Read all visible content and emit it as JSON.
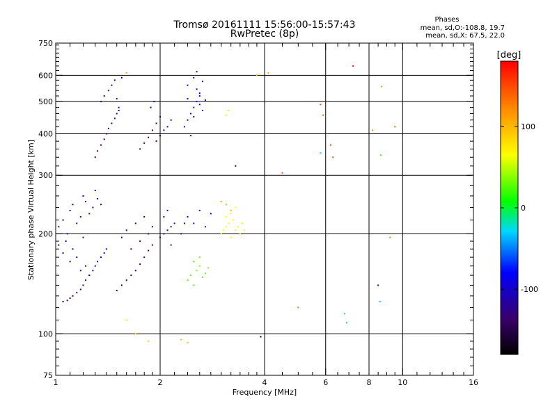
{
  "chart_data": {
    "type": "scatter",
    "title": "Tromsø 20161111 15:56:00-15:57:43",
    "subtitle": "RwPretec (8p)",
    "stats": {
      "heading": "Phases",
      "line1": "mean, sd,O:-108.8, 19.7",
      "line2": "mean, sd,X:  67.5, 22.0"
    },
    "xlabel": "Frequency [MHz]",
    "ylabel": "Stationary phase Virtual Height [km]",
    "x_scale": "log",
    "y_scale": "log",
    "xlim": [
      1,
      16
    ],
    "ylim": [
      75,
      750
    ],
    "x_ticks": [
      1,
      2,
      4,
      6,
      8,
      10,
      16
    ],
    "y_ticks": [
      75,
      100,
      200,
      300,
      400,
      500,
      600,
      750
    ],
    "x_minor_ticks": [
      1.1,
      1.2,
      1.3,
      1.4,
      1.5,
      1.6,
      1.7,
      1.8,
      1.9,
      2.2,
      2.4,
      2.6,
      2.8,
      3,
      3.2,
      3.4,
      3.6,
      3.8,
      4.5,
      5,
      5.5,
      6.5,
      7,
      7.5,
      8.5,
      9,
      9.5,
      11,
      12,
      13,
      14,
      15
    ],
    "y_minor_ticks": [
      80,
      85,
      90,
      95,
      110,
      120,
      130,
      140,
      150,
      160,
      170,
      180,
      190,
      220,
      240,
      260,
      280,
      320,
      340,
      360,
      380,
      420,
      440,
      460,
      480,
      520,
      540,
      560,
      580,
      620,
      640,
      660,
      680,
      700,
      720,
      740
    ],
    "grid_x": [
      2,
      4,
      6,
      8,
      10
    ],
    "grid_y": [
      100,
      200,
      300,
      400,
      500,
      600
    ],
    "colorbar": {
      "label": "[deg]",
      "range": [
        -180,
        180
      ],
      "ticks": [
        100,
        0,
        -100
      ]
    },
    "series": [
      {
        "x": [
          1.05,
          1.08,
          1.1,
          1.12,
          1.15,
          1.18,
          1.2,
          1.22,
          1.25,
          1.28,
          1.3,
          1.32,
          1.35,
          1.38,
          1.4
        ],
        "y": [
          125,
          126,
          128,
          130,
          133,
          136,
          140,
          145,
          150,
          155,
          160,
          165,
          170,
          175,
          180
        ],
        "phase": [
          -150,
          -140,
          -135,
          -130,
          -125,
          -120,
          -118,
          -115,
          -112,
          -110,
          -108,
          -105,
          -102,
          -100,
          -98
        ]
      },
      {
        "x": [
          1.02,
          1.05,
          1.08,
          1.1,
          1.12,
          1.15,
          1.18,
          1.2,
          1.22,
          1.25,
          1.28,
          1.3,
          1.32,
          1.35
        ],
        "y": [
          210,
          220,
          200,
          235,
          245,
          215,
          225,
          260,
          250,
          230,
          240,
          270,
          255,
          245
        ],
        "phase": [
          -105,
          -100,
          -108,
          -95,
          -98,
          -102,
          -100,
          -92,
          -95,
          -97,
          -100,
          -94,
          -96,
          -98
        ]
      },
      {
        "x": [
          1.02,
          1.05,
          1.07,
          1.1,
          1.12,
          1.15,
          1.18,
          1.2,
          1.22,
          1.25
        ],
        "y": [
          185,
          175,
          190,
          165,
          180,
          170,
          155,
          195,
          160,
          150
        ],
        "phase": [
          -110,
          -115,
          -108,
          -120,
          -112,
          -118,
          -122,
          -106,
          -120,
          -125
        ]
      },
      {
        "x": [
          1.3,
          1.32,
          1.35,
          1.38,
          1.4,
          1.42,
          1.45,
          1.48,
          1.5,
          1.52
        ],
        "y": [
          340,
          355,
          370,
          385,
          400,
          415,
          430,
          445,
          460,
          480
        ],
        "phase": [
          -140,
          -138,
          -135,
          -132,
          -130,
          -128,
          -125,
          -122,
          -120,
          -118
        ]
      },
      {
        "x": [
          1.35,
          1.38,
          1.42,
          1.45,
          1.48,
          1.5,
          1.52,
          1.55
        ],
        "y": [
          500,
          520,
          540,
          560,
          580,
          510,
          470,
          590
        ],
        "phase": [
          -118,
          -115,
          -112,
          -110,
          -108,
          -114,
          -120,
          -106
        ]
      },
      {
        "x": [
          1.5,
          1.55,
          1.6,
          1.65,
          1.7,
          1.75,
          1.8,
          1.85,
          1.9
        ],
        "y": [
          135,
          140,
          145,
          150,
          155,
          162,
          170,
          178,
          185
        ],
        "phase": [
          -145,
          -142,
          -140,
          -138,
          -135,
          -132,
          -130,
          -128,
          -125
        ]
      },
      {
        "x": [
          1.55,
          1.6,
          1.65,
          1.7,
          1.75,
          1.8,
          1.85,
          1.9
        ],
        "y": [
          195,
          205,
          180,
          215,
          190,
          225,
          200,
          210
        ],
        "phase": [
          -130,
          -128,
          -132,
          -125,
          -130,
          -122,
          -128,
          -126
        ]
      },
      {
        "x": [
          1.75,
          1.8,
          1.85,
          1.9,
          1.95,
          2.0,
          1.88,
          1.92
        ],
        "y": [
          360,
          375,
          390,
          410,
          430,
          450,
          480,
          500
        ],
        "phase": [
          -140,
          -138,
          -135,
          -132,
          -130,
          -128,
          -125,
          -122
        ]
      },
      {
        "x": [
          1.95,
          2.0,
          2.05,
          2.1,
          2.15
        ],
        "y": [
          380,
          395,
          410,
          420,
          440
        ],
        "phase": [
          -95,
          -92,
          -90,
          -88,
          -85
        ]
      },
      {
        "x": [
          2.0,
          2.05,
          2.1,
          2.15,
          2.2,
          2.05,
          2.1,
          2.15,
          2.3,
          2.35
        ],
        "y": [
          195,
          200,
          205,
          210,
          215,
          225,
          235,
          185,
          200,
          215
        ],
        "phase": [
          -120,
          -118,
          -115,
          -112,
          -110,
          -116,
          -114,
          -118,
          -108,
          -106
        ]
      },
      {
        "x": [
          2.35,
          2.4,
          2.45,
          2.5,
          2.55,
          2.6,
          2.65,
          2.4,
          2.5,
          2.6
        ],
        "y": [
          420,
          440,
          460,
          480,
          500,
          520,
          470,
          510,
          450,
          490
        ],
        "phase": [
          -95,
          -92,
          -90,
          -88,
          -85,
          -82,
          -86,
          -80,
          -90,
          -84
        ]
      },
      {
        "x": [
          2.4,
          2.5,
          2.55,
          2.6,
          2.65,
          2.7,
          2.55,
          2.45
        ],
        "y": [
          560,
          590,
          545,
          530,
          575,
          505,
          615,
          395
        ],
        "phase": [
          -88,
          -85,
          -86,
          -83,
          -82,
          -80,
          -90,
          -92
        ]
      },
      {
        "x": [
          2.4,
          2.45,
          2.5,
          2.55,
          2.6,
          2.65,
          2.7,
          2.75,
          2.5,
          2.6
        ],
        "y": [
          145,
          150,
          140,
          155,
          160,
          148,
          152,
          158,
          165,
          170
        ],
        "phase": [
          25,
          28,
          22,
          30,
          32,
          26,
          28,
          35,
          20,
          24
        ]
      },
      {
        "x": [
          2.4,
          2.5,
          2.6,
          2.7,
          2.8
        ],
        "y": [
          225,
          215,
          235,
          210,
          230
        ],
        "phase": [
          -98,
          -100,
          -95,
          -102,
          -96
        ]
      },
      {
        "x": [
          3.0,
          3.05,
          3.1,
          3.15,
          3.2,
          3.25,
          3.3,
          3.35,
          3.4,
          3.45,
          3.5,
          3.1,
          3.2,
          3.3
        ],
        "y": [
          200,
          205,
          210,
          215,
          195,
          220,
          205,
          210,
          200,
          215,
          205,
          225,
          230,
          240
        ],
        "phase": [
          60,
          62,
          58,
          65,
          55,
          63,
          60,
          57,
          62,
          59,
          61,
          66,
          64,
          68
        ]
      },
      {
        "x": [
          3.0,
          3.1,
          3.2
        ],
        "y": [
          250,
          245,
          235
        ],
        "phase": [
          110,
          105,
          108
        ]
      },
      {
        "x": [
          3.1,
          3.15,
          3.3
        ],
        "y": [
          455,
          470,
          320
        ],
        "phase": [
          75,
          80,
          -140
        ]
      },
      {
        "x": [
          3.8,
          4.1,
          4.5,
          5.0,
          5.8,
          5.9,
          6.2,
          6.3,
          7.2,
          8.2,
          8.7,
          9.2,
          9.5
        ],
        "y": [
          600,
          610,
          305,
          120,
          490,
          455,
          370,
          340,
          640,
          410,
          555,
          195,
          420
        ],
        "phase": [
          110,
          105,
          140,
          130,
          150,
          135,
          160,
          145,
          170,
          125,
          115,
          130,
          140
        ]
      },
      {
        "x": [
          5.8,
          6.8,
          6.9,
          8.5,
          8.6,
          8.65
        ],
        "y": [
          350,
          115,
          108,
          140,
          125,
          345
        ],
        "phase": [
          -20,
          -15,
          -25,
          -120,
          -30,
          20
        ]
      },
      {
        "x": [
          1.6,
          1.7,
          1.85,
          2.3,
          2.4,
          1.6,
          3.9
        ],
        "y": [
          110,
          100,
          95,
          96,
          94,
          610,
          98
        ],
        "phase": [
          80,
          90,
          85,
          100,
          95,
          110,
          -170
        ]
      }
    ]
  }
}
